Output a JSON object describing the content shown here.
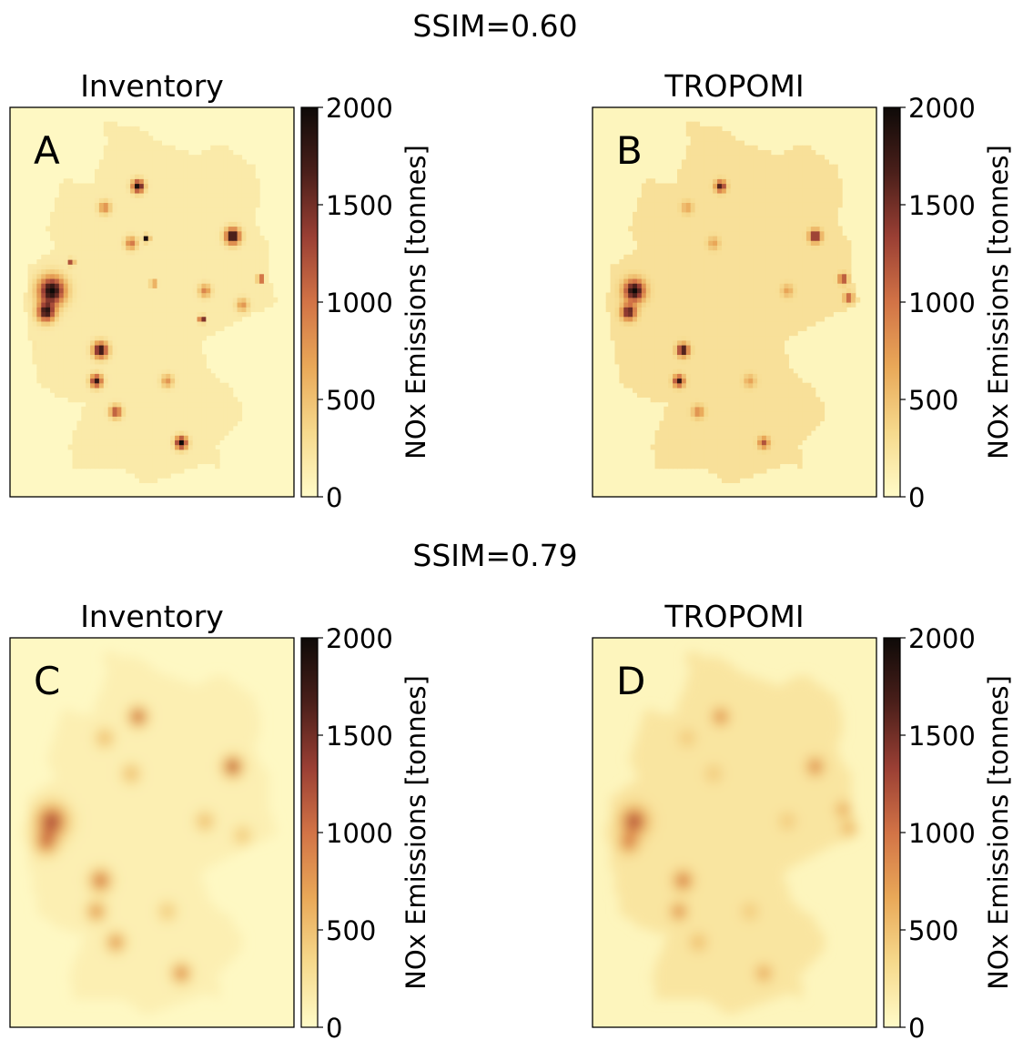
{
  "figure": {
    "row_titles": [
      "SSIM=0.60",
      "SSIM=0.79"
    ]
  },
  "colormap": {
    "name": "YlOrBr-dark",
    "stops": [
      "#fffbc8",
      "#f6d98c",
      "#e9a858",
      "#d27346",
      "#9a3f34",
      "#4a1f1a",
      "#0e0a08"
    ]
  },
  "chart_data": [
    {
      "type": "heatmap",
      "panel_letter": "A",
      "title": "Inventory",
      "colorbar_label": "NOx Emissions [tonnes]",
      "colorbar_ticks": [
        "0",
        "500",
        "1000",
        "1500",
        "2000"
      ],
      "vlim": [
        0,
        2000
      ],
      "background_value": 30,
      "field_value": 170,
      "blur": 0,
      "hotspots": [
        {
          "lon": 6.9,
          "lat": 51.35,
          "value": 2000,
          "spread": 0.45
        },
        {
          "lon": 6.7,
          "lat": 50.9,
          "value": 1800,
          "spread": 0.3
        },
        {
          "lon": 13.4,
          "lat": 52.5,
          "value": 2000,
          "spread": 0.25
        },
        {
          "lon": 10.0,
          "lat": 53.55,
          "value": 2000,
          "spread": 0.2
        },
        {
          "lon": 11.55,
          "lat": 48.15,
          "value": 2000,
          "spread": 0.2
        },
        {
          "lon": 8.65,
          "lat": 50.1,
          "value": 1900,
          "spread": 0.25
        },
        {
          "lon": 8.5,
          "lat": 49.45,
          "value": 1800,
          "spread": 0.2
        },
        {
          "lon": 9.2,
          "lat": 48.8,
          "value": 1300,
          "spread": 0.2
        },
        {
          "lon": 9.75,
          "lat": 52.35,
          "value": 1000,
          "spread": 0.2
        },
        {
          "lon": 12.4,
          "lat": 51.35,
          "value": 900,
          "spread": 0.2
        },
        {
          "lon": 13.75,
          "lat": 51.05,
          "value": 800,
          "spread": 0.2
        },
        {
          "lon": 11.05,
          "lat": 49.45,
          "value": 800,
          "spread": 0.2
        },
        {
          "lon": 8.8,
          "lat": 53.1,
          "value": 900,
          "spread": 0.2
        },
        {
          "lon": 14.4,
          "lat": 51.6,
          "value": 2000,
          "spread": 0.1
        },
        {
          "lon": 12.3,
          "lat": 50.75,
          "value": 2000,
          "spread": 0.1
        },
        {
          "lon": 10.3,
          "lat": 52.45,
          "value": 2000,
          "spread": 0.1
        },
        {
          "lon": 7.6,
          "lat": 51.95,
          "value": 1400,
          "spread": 0.1
        },
        {
          "lon": 6.1,
          "lat": 50.2,
          "value": 1500,
          "spread": 0.1
        },
        {
          "lon": 10.55,
          "lat": 51.5,
          "value": 1200,
          "spread": 0.1
        }
      ]
    },
    {
      "type": "heatmap",
      "panel_letter": "B",
      "title": "TROPOMI",
      "colorbar_label": "NOx Emissions [tonnes]",
      "colorbar_ticks": [
        "0",
        "500",
        "1000",
        "1500",
        "2000"
      ],
      "vlim": [
        0,
        2000
      ],
      "background_value": 60,
      "field_value": 260,
      "blur": 0,
      "hotspots": [
        {
          "lon": 6.9,
          "lat": 51.35,
          "value": 2000,
          "spread": 0.35
        },
        {
          "lon": 6.7,
          "lat": 50.9,
          "value": 1700,
          "spread": 0.25
        },
        {
          "lon": 13.4,
          "lat": 52.5,
          "value": 1700,
          "spread": 0.2
        },
        {
          "lon": 10.0,
          "lat": 53.55,
          "value": 1700,
          "spread": 0.18
        },
        {
          "lon": 11.55,
          "lat": 48.15,
          "value": 1200,
          "spread": 0.18
        },
        {
          "lon": 8.65,
          "lat": 50.1,
          "value": 1900,
          "spread": 0.2
        },
        {
          "lon": 8.5,
          "lat": 49.45,
          "value": 1800,
          "spread": 0.18
        },
        {
          "lon": 9.2,
          "lat": 48.8,
          "value": 900,
          "spread": 0.2
        },
        {
          "lon": 14.4,
          "lat": 51.6,
          "value": 1500,
          "spread": 0.15
        },
        {
          "lon": 14.6,
          "lat": 51.2,
          "value": 1300,
          "spread": 0.15
        },
        {
          "lon": 12.4,
          "lat": 51.35,
          "value": 700,
          "spread": 0.2
        },
        {
          "lon": 11.05,
          "lat": 49.45,
          "value": 700,
          "spread": 0.2
        },
        {
          "lon": 8.8,
          "lat": 53.1,
          "value": 700,
          "spread": 0.2
        },
        {
          "lon": 9.75,
          "lat": 52.35,
          "value": 700,
          "spread": 0.2
        }
      ]
    },
    {
      "type": "heatmap",
      "panel_letter": "C",
      "title": "Inventory",
      "colorbar_label": "NOx Emissions [tonnes]",
      "colorbar_ticks": [
        "0",
        "500",
        "1000",
        "1500",
        "2000"
      ],
      "vlim": [
        0,
        2000
      ],
      "background_value": 30,
      "field_value": 120,
      "blur": 1,
      "hotspots": [
        {
          "lon": 6.9,
          "lat": 51.35,
          "value": 1300,
          "spread": 0.5
        },
        {
          "lon": 6.7,
          "lat": 50.9,
          "value": 1000,
          "spread": 0.35
        },
        {
          "lon": 13.4,
          "lat": 52.5,
          "value": 1300,
          "spread": 0.3
        },
        {
          "lon": 10.0,
          "lat": 53.55,
          "value": 1200,
          "spread": 0.28
        },
        {
          "lon": 11.55,
          "lat": 48.15,
          "value": 1000,
          "spread": 0.28
        },
        {
          "lon": 8.65,
          "lat": 50.1,
          "value": 1100,
          "spread": 0.32
        },
        {
          "lon": 8.5,
          "lat": 49.45,
          "value": 900,
          "spread": 0.28
        },
        {
          "lon": 9.2,
          "lat": 48.8,
          "value": 900,
          "spread": 0.28
        },
        {
          "lon": 9.75,
          "lat": 52.35,
          "value": 600,
          "spread": 0.28
        },
        {
          "lon": 12.4,
          "lat": 51.35,
          "value": 600,
          "spread": 0.28
        },
        {
          "lon": 13.75,
          "lat": 51.05,
          "value": 500,
          "spread": 0.28
        },
        {
          "lon": 11.05,
          "lat": 49.45,
          "value": 500,
          "spread": 0.28
        },
        {
          "lon": 8.8,
          "lat": 53.1,
          "value": 600,
          "spread": 0.28
        }
      ]
    },
    {
      "type": "heatmap",
      "panel_letter": "D",
      "title": "TROPOMI",
      "colorbar_label": "NOx Emissions [tonnes]",
      "colorbar_ticks": [
        "0",
        "500",
        "1000",
        "1500",
        "2000"
      ],
      "vlim": [
        0,
        2000
      ],
      "background_value": 60,
      "field_value": 220,
      "blur": 1,
      "hotspots": [
        {
          "lon": 6.9,
          "lat": 51.35,
          "value": 1300,
          "spread": 0.42
        },
        {
          "lon": 6.7,
          "lat": 50.9,
          "value": 1000,
          "spread": 0.3
        },
        {
          "lon": 13.4,
          "lat": 52.5,
          "value": 1000,
          "spread": 0.26
        },
        {
          "lon": 10.0,
          "lat": 53.55,
          "value": 1000,
          "spread": 0.24
        },
        {
          "lon": 11.55,
          "lat": 48.15,
          "value": 800,
          "spread": 0.24
        },
        {
          "lon": 8.65,
          "lat": 50.1,
          "value": 1100,
          "spread": 0.28
        },
        {
          "lon": 8.5,
          "lat": 49.45,
          "value": 1000,
          "spread": 0.24
        },
        {
          "lon": 9.2,
          "lat": 48.8,
          "value": 600,
          "spread": 0.26
        },
        {
          "lon": 14.4,
          "lat": 51.6,
          "value": 800,
          "spread": 0.22
        },
        {
          "lon": 14.6,
          "lat": 51.2,
          "value": 700,
          "spread": 0.22
        },
        {
          "lon": 12.4,
          "lat": 51.35,
          "value": 500,
          "spread": 0.26
        },
        {
          "lon": 11.05,
          "lat": 49.45,
          "value": 500,
          "spread": 0.26
        },
        {
          "lon": 8.8,
          "lat": 53.1,
          "value": 500,
          "spread": 0.26
        },
        {
          "lon": 9.75,
          "lat": 52.35,
          "value": 500,
          "spread": 0.26
        }
      ]
    }
  ]
}
